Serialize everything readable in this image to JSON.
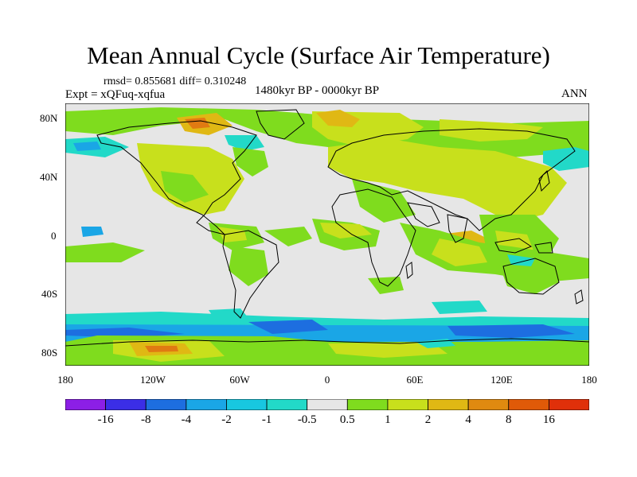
{
  "title": "Mean Annual Cycle (Surface Air Temperature)",
  "stats_text": "rmsd= 0.855681 diff= 0.310248",
  "experiment_text": "Expt = xQFuq-xqfua",
  "period_text": "1480kyr BP - 0000kyr BP",
  "season_text": "ANN",
  "lat_labels": [
    "80N",
    "40N",
    "0",
    "40S",
    "80S"
  ],
  "lon_labels": [
    "180",
    "120W",
    "60W",
    "0",
    "60E",
    "120E",
    "180"
  ],
  "colorbar": {
    "labels": [
      "-16",
      "-8",
      "-4",
      "-2",
      "-1",
      "-0.5",
      "0.5",
      "1",
      "2",
      "4",
      "8",
      "16"
    ],
    "colors": [
      "#8c1fe6",
      "#3b2ee6",
      "#1d6ee0",
      "#1aa6e6",
      "#18c7e0",
      "#22d9c8",
      "#e6e6e6",
      "#7fdc1e",
      "#c8e01c",
      "#e0b814",
      "#e08a10",
      "#e05a08",
      "#e0300a"
    ]
  },
  "map_colors": {
    "background": "#e6e6e6",
    "warm_light": "#7fdc1e",
    "warm_mid": "#c8e01c",
    "warm_high": "#e0b814",
    "warm_top": "#e07a12",
    "cool_light": "#22d9c8",
    "cool_mid": "#1aa6e6",
    "cool_deep": "#1d6ee0",
    "coast": "#000000"
  }
}
